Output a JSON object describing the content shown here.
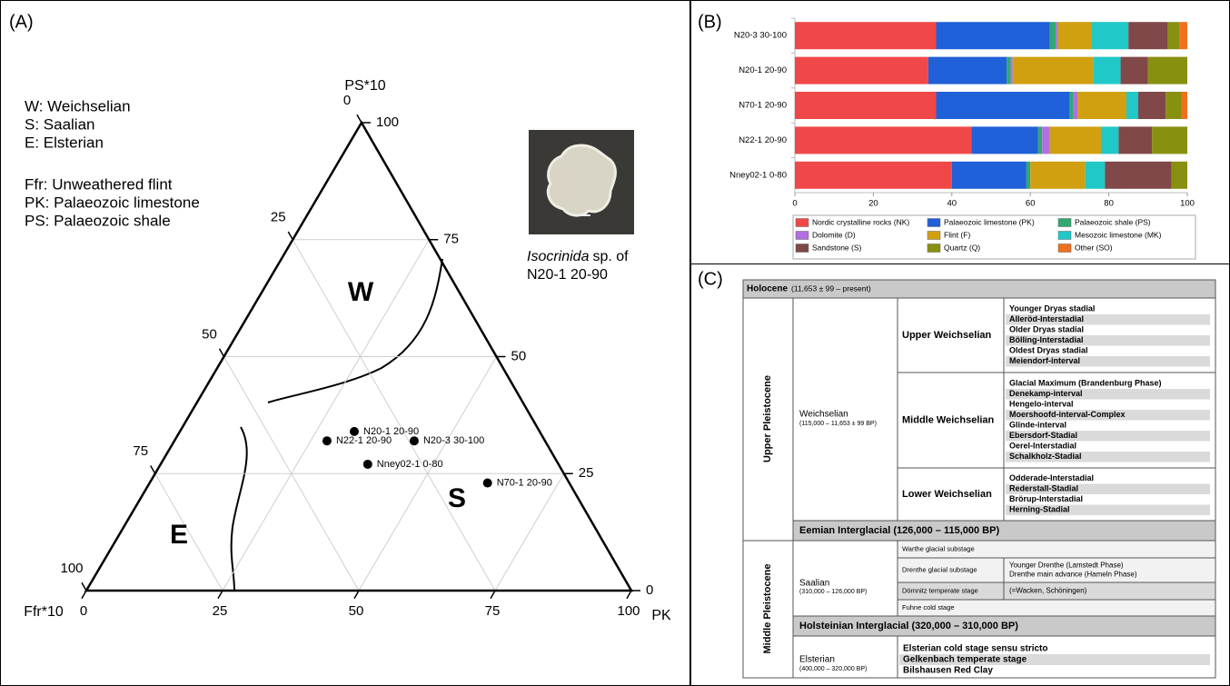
{
  "chart_data": [
    {
      "type": "ternary",
      "panel_label": "(A)",
      "axes": {
        "top": "PS*10",
        "left": "Ffr*10",
        "right": "PK"
      },
      "ticks": [
        0,
        25,
        50,
        75,
        100
      ],
      "legend_lines": [
        "W: Weichselian",
        "S: Saalian",
        "E: Elsterian",
        "Ffr: Unweathered flint",
        "PK: Palaeozoic limestone",
        "PS: Palaeozoic shale"
      ],
      "region_labels": [
        "W",
        "S",
        "E"
      ],
      "color": "#000000",
      "points": [
        {
          "label": "N20-1 20-90",
          "ffr": 34,
          "pk": 32,
          "ps": 34
        },
        {
          "label": "N22-1 20-90",
          "ffr": 40,
          "pk": 28,
          "ps": 32
        },
        {
          "label": "N20-3 30-100",
          "ffr": 24,
          "pk": 44,
          "ps": 32
        },
        {
          "label": "Nney02-1 0-80",
          "ffr": 35,
          "pk": 38,
          "ps": 27
        },
        {
          "label": "N70-1 20-90",
          "ffr": 15,
          "pk": 62,
          "ps": 23
        }
      ],
      "photo_caption": [
        "Isocrinida",
        "sp. of",
        "N20-1 20-90"
      ]
    },
    {
      "type": "stacked_barh",
      "panel_label": "(B)",
      "categories": [
        "N20-3 30-100",
        "N20-1 20-90",
        "N70-1 20-90",
        "N22-1 20-90",
        "Nney02-1 0-80"
      ],
      "series": [
        {
          "name": "Nordic crystalline rocks (NK)",
          "color": "#f04848",
          "values": [
            36,
            34,
            36,
            45,
            40
          ]
        },
        {
          "name": "Palaeozoic limestone (PK)",
          "color": "#2060d8",
          "values": [
            29,
            20,
            34,
            17,
            19
          ]
        },
        {
          "name": "Palaeozoic shale (PS)",
          "color": "#30a870",
          "values": [
            1.5,
            1,
            1,
            1,
            1
          ]
        },
        {
          "name": "Dolomite (D)",
          "color": "#b070e0",
          "values": [
            0.5,
            0.5,
            1,
            2,
            0
          ]
        },
        {
          "name": "Flint (F)",
          "color": "#d0a010",
          "values": [
            8.5,
            20.5,
            12.5,
            13,
            14
          ]
        },
        {
          "name": "Mesozoic limestone (MK)",
          "color": "#20c8c8",
          "values": [
            9.5,
            7,
            3,
            4.5,
            5
          ]
        },
        {
          "name": "Sandstone (S)",
          "color": "#804848",
          "values": [
            10,
            7,
            7,
            8.5,
            17
          ]
        },
        {
          "name": "Quartz (Q)",
          "color": "#889010",
          "values": [
            3,
            10,
            4,
            9,
            4
          ]
        },
        {
          "name": "Other (SO)",
          "color": "#f07020",
          "values": [
            2,
            0,
            1.5,
            0,
            0
          ]
        }
      ],
      "xlim": [
        0,
        100
      ],
      "xticks": [
        0,
        20,
        40,
        60,
        80,
        100
      ]
    }
  ],
  "table": {
    "panel_label": "(C)",
    "holocene": {
      "name": "Holocene",
      "dates": "(11,653 ± 99 – present)"
    },
    "upper_pleistocene": "Upper Pleistocene",
    "weichselian": {
      "name": "Weichselian",
      "dates": "(115,000 – 11,653 ± 99 BP)",
      "substages": [
        {
          "name": "Upper Weichselian",
          "items": [
            "Younger Dryas stadial",
            "Alleröd-Interstadial",
            "Older Dryas stadial",
            "Bölling-Interstadial",
            "Oldest Dryas stadial",
            "Meiendorf-interval"
          ]
        },
        {
          "name": "Middle Weichselian",
          "items": [
            "Glacial Maximum (Brandenburg Phase)",
            "Denekamp-interval",
            "Hengelo-interval",
            "Moershoofd-interval-Complex",
            "Glinde-interval",
            "Ebersdorf-Stadial",
            "Oerel-Interstadial",
            "Schalkholz-Stadial"
          ]
        },
        {
          "name": "Lower Weichselian",
          "items": [
            "Odderade-Interstadial",
            "Rederstall-Stadial",
            "Brörup-Interstadial",
            "Herning-Stadial"
          ]
        }
      ]
    },
    "eemian": "Eemian Interglacial (126,000 – 115,000 BP)",
    "middle_pleistocene": "Middle Pleistocene",
    "saalian": {
      "name": "Saalian",
      "dates": "(310,000 – 126,000 BP)",
      "substages": [
        {
          "name": "Warthe glacial substage"
        },
        {
          "name": "Drenthe glacial substage",
          "notes": [
            "Younger Drenthe (Lamstedt Phase)",
            "Drenthe main advance (Hameln Phase)"
          ]
        },
        {
          "name": "Dömnitz temperate stage",
          "notes": [
            "(=Wacken, Schöningen)"
          ]
        },
        {
          "name": "Fuhne cold stage"
        }
      ]
    },
    "holsteinian": "Holsteinian Interglacial (320,000 – 310,000 BP)",
    "elsterian": {
      "name": "Elsterian",
      "dates": "(400,000 – 320,000 BP)",
      "items": [
        "Elsterian cold stage sensu stricto",
        "Gelkenbach temperate stage",
        "Bilshausen Red Clay"
      ]
    }
  }
}
